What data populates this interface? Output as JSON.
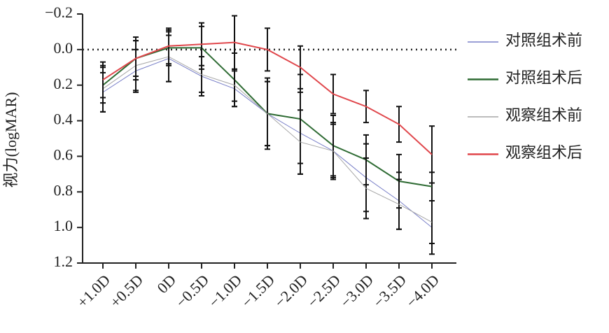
{
  "chart_data": {
    "type": "line",
    "y_label": "视力(logMAR)",
    "categories": [
      "+1.0D",
      "+0.5D",
      "0D",
      "−0.5D",
      "−1.0D",
      "−1.5D",
      "−2.0D",
      "−2.5D",
      "−3.0D",
      "−3.5D",
      "−4.0D"
    ],
    "series": [
      {
        "name": "对照组术前",
        "color": "#7a80c8",
        "width": 1,
        "values": [
          0.24,
          0.12,
          0.05,
          0.15,
          0.22,
          0.36,
          0.47,
          0.57,
          0.72,
          0.85,
          1.0
        ],
        "errors": [
          0.11,
          0.12,
          0.13,
          0.11,
          0.1,
          0.18,
          0.23,
          0.16,
          0.19,
          0.16,
          0.15
        ]
      },
      {
        "name": "对照组术后",
        "color": "#2e6b33",
        "width": 2,
        "values": [
          0.2,
          0.05,
          -0.01,
          -0.01,
          0.17,
          0.36,
          0.39,
          0.54,
          0.62,
          0.74,
          0.77
        ],
        "errors": [
          0.1,
          0.1,
          0.1,
          0.12,
          0.15,
          0.18,
          0.25,
          0.17,
          0.14,
          0.15,
          0.08
        ]
      },
      {
        "name": "观察组术前",
        "color": "#a6a6a6",
        "width": 1,
        "values": [
          0.22,
          0.09,
          0.04,
          0.14,
          0.2,
          0.36,
          0.52,
          0.57,
          0.78,
          0.87,
          0.97
        ],
        "errors": [
          0.13,
          0.14,
          0.14,
          0.1,
          0.09,
          0.2,
          0.18,
          0.15,
          0.17,
          0.14,
          0.12
        ]
      },
      {
        "name": "观察组术后",
        "color": "#e0474c",
        "width": 2,
        "values": [
          0.17,
          0.05,
          -0.02,
          -0.03,
          -0.04,
          0.0,
          0.1,
          0.25,
          0.32,
          0.42,
          0.59
        ],
        "errors": [
          0.1,
          0.12,
          0.1,
          0.12,
          0.15,
          0.12,
          0.12,
          0.11,
          0.09,
          0.1,
          0.16
        ]
      }
    ],
    "ylim": [
      -0.2,
      1.2
    ],
    "y_inverted": true,
    "yticks": [
      {
        "value": -0.2,
        "label": "−0.2"
      },
      {
        "value": 0,
        "label": "0.0"
      },
      0.2,
      0.4,
      0.6,
      0.8,
      {
        "value": 1,
        "label": "1.0"
      },
      1.2
    ],
    "reference_line": 0,
    "legend": "right"
  }
}
